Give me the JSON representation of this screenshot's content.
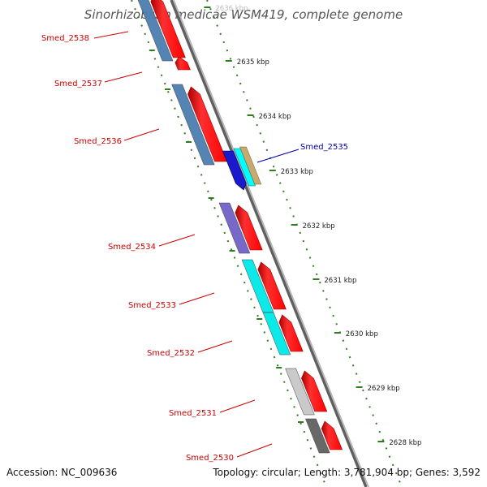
{
  "title": "Sinorhizobium medicae WSM419, complete genome",
  "footer": {
    "accession": "Accession: NC_009636",
    "topology": "Topology: circular; Length: 3,781,904 bp; Genes: 3,592"
  },
  "scale_ticks": [
    "2636 kbp",
    "2635 kbp",
    "2634 kbp",
    "2633 kbp",
    "2632 kbp",
    "2631 kbp",
    "2630 kbp",
    "2629 kbp",
    "2628 kbp"
  ],
  "genes": [
    {
      "name": "Smed_2538",
      "strand": "forward",
      "color": "#4A7EB0"
    },
    {
      "name": "Smed_2537",
      "strand": "forward",
      "color": "#4A7EB0"
    },
    {
      "name": "Smed_2536",
      "strand": "forward",
      "color": "#4A7EB0"
    },
    {
      "name": "Smed_2535",
      "strand": "reverse",
      "color": "#1A1ACC"
    },
    {
      "name": "Smed_2534",
      "strand": "forward",
      "color": "#7060C8"
    },
    {
      "name": "Smed_2533",
      "strand": "forward",
      "color": "#00E8E8"
    },
    {
      "name": "Smed_2532",
      "strand": "forward",
      "color": "#00E8E8"
    },
    {
      "name": "Smed_2531",
      "strand": "forward",
      "color": "#C8C8C8"
    },
    {
      "name": "Smed_2530",
      "strand": "forward",
      "color": "#606060"
    }
  ],
  "colors": {
    "forward_label": "#CC0000",
    "reverse_label": "#0000AA",
    "feature_red": "#FF0000",
    "backbone": "#808080",
    "tick": "#2E7D1E",
    "cyan": "#00FFFF",
    "tan": "#C8AA6E"
  }
}
